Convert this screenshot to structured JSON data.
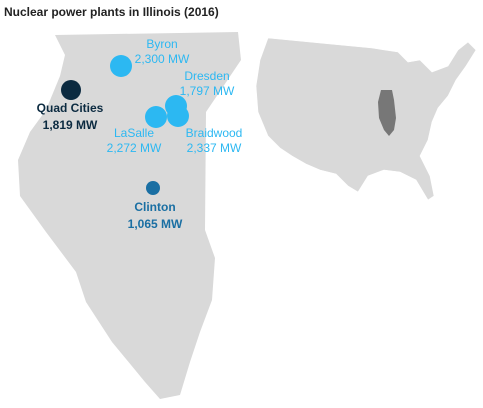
{
  "title": "Nuclear power plants in Illinois (2016)",
  "plants": [
    {
      "name": "Byron",
      "capacity": "2,300 MW",
      "color": "#2cb8f2"
    },
    {
      "name": "Dresden",
      "capacity": "1,797 MW",
      "color": "#2cb8f2"
    },
    {
      "name": "Quad Cities",
      "capacity": "1,819 MW",
      "color": "#0b2a40"
    },
    {
      "name": "LaSalle",
      "capacity": "2,272 MW",
      "color": "#2cb8f2"
    },
    {
      "name": "Braidwood",
      "capacity": "2,337 MW",
      "color": "#2cb8f2"
    },
    {
      "name": "Clinton",
      "capacity": "1,065 MW",
      "color": "#1a6fa3"
    }
  ]
}
